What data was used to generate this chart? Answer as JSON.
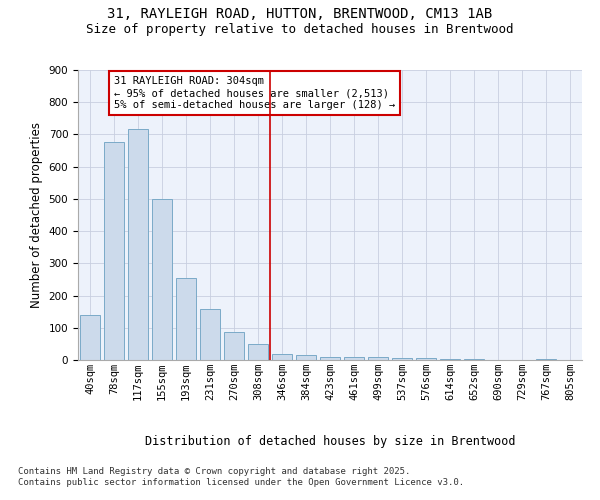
{
  "title_line1": "31, RAYLEIGH ROAD, HUTTON, BRENTWOOD, CM13 1AB",
  "title_line2": "Size of property relative to detached houses in Brentwood",
  "xlabel": "Distribution of detached houses by size in Brentwood",
  "ylabel": "Number of detached properties",
  "categories": [
    "40sqm",
    "78sqm",
    "117sqm",
    "155sqm",
    "193sqm",
    "231sqm",
    "270sqm",
    "308sqm",
    "346sqm",
    "384sqm",
    "423sqm",
    "461sqm",
    "499sqm",
    "537sqm",
    "576sqm",
    "614sqm",
    "652sqm",
    "690sqm",
    "729sqm",
    "767sqm",
    "805sqm"
  ],
  "bar_values": [
    140,
    678,
    718,
    500,
    255,
    158,
    88,
    50,
    20,
    17,
    10,
    8,
    10,
    6,
    5,
    3,
    2,
    0,
    0,
    3,
    0
  ],
  "bar_color": "#ccdaeb",
  "bar_edge_color": "#7aaac8",
  "ylim": [
    0,
    900
  ],
  "yticks": [
    0,
    100,
    200,
    300,
    400,
    500,
    600,
    700,
    800,
    900
  ],
  "vline_x_index": 7,
  "vline_color": "#cc0000",
  "annotation_text": "31 RAYLEIGH ROAD: 304sqm\n← 95% of detached houses are smaller (2,513)\n5% of semi-detached houses are larger (128) →",
  "annotation_box_color": "#cc0000",
  "footnote": "Contains HM Land Registry data © Crown copyright and database right 2025.\nContains public sector information licensed under the Open Government Licence v3.0.",
  "background_color": "#edf2fb",
  "grid_color": "#c8cfe0",
  "title_fontsize": 10,
  "subtitle_fontsize": 9,
  "axis_label_fontsize": 8.5,
  "tick_fontsize": 7.5,
  "annotation_fontsize": 7.5,
  "footnote_fontsize": 6.5
}
